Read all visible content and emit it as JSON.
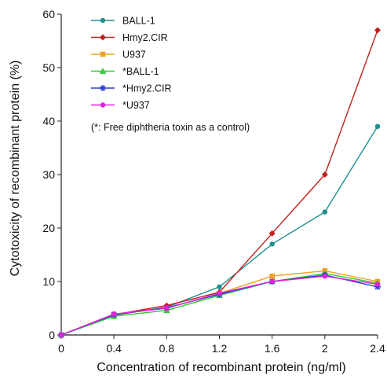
{
  "chart_data": {
    "type": "line",
    "xlabel": "Concentration of recombinant protein (ng/ml)",
    "ylabel": "Cytotoxicity of recombinant protein (%)",
    "x": [
      0,
      0.4,
      0.8,
      1.2,
      1.6,
      2,
      2.4
    ],
    "x_tick_labels": [
      "0",
      "0.4",
      "0.8",
      "1.2",
      "1.6",
      "2",
      "2.4"
    ],
    "xlim": [
      0,
      2.4
    ],
    "ylim": [
      0,
      60
    ],
    "y_ticks": [
      0,
      10,
      20,
      30,
      40,
      50,
      60
    ],
    "grid": false,
    "legend_position": "top-left",
    "note": "(*: Free diphtheria toxin as a control)",
    "series": [
      {
        "name": "BALL-1",
        "color": "#1f8f8f",
        "marker": "circle",
        "values": [
          0,
          3.7,
          5.2,
          9.0,
          17.0,
          23.0,
          39.0
        ]
      },
      {
        "name": "Hmy2.CIR",
        "color": "#c0201e",
        "marker": "diamond",
        "values": [
          0,
          3.8,
          5.5,
          8.0,
          19.0,
          30.0,
          57.0
        ]
      },
      {
        "name": "U937",
        "color": "#f0a020",
        "marker": "square",
        "values": [
          0,
          3.9,
          5.0,
          7.8,
          11.0,
          12.0,
          10.0
        ]
      },
      {
        "name": "*BALL-1",
        "color": "#2ecc2e",
        "marker": "triangle",
        "values": [
          0,
          3.5,
          4.6,
          7.4,
          10.0,
          11.5,
          9.7
        ]
      },
      {
        "name": "*Hmy2.CIR",
        "color": "#2a3fd4",
        "marker": "star",
        "values": [
          0,
          3.8,
          5.1,
          7.6,
          10.0,
          11.2,
          9.0
        ]
      },
      {
        "name": "*U937",
        "color": "#e020e0",
        "marker": "circle",
        "values": [
          0,
          3.9,
          5.0,
          7.8,
          10.0,
          11.0,
          9.5
        ]
      }
    ]
  }
}
